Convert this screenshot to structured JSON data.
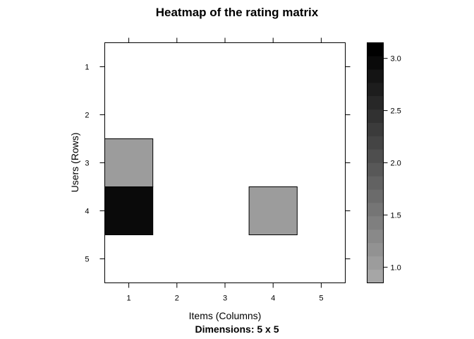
{
  "chart_data": {
    "type": "heatmap",
    "title": "Heatmap of the rating matrix",
    "subtitle": "Dimensions: 5 x 5",
    "xlabel": "Items (Columns)",
    "ylabel": "Users (Rows)",
    "x_ticks": [
      "1",
      "2",
      "3",
      "4",
      "5"
    ],
    "y_ticks": [
      "1",
      "2",
      "3",
      "4",
      "5"
    ],
    "rows": 5,
    "cols": 5,
    "cells": [
      {
        "row": 3,
        "col": 1,
        "value": 1.0
      },
      {
        "row": 4,
        "col": 1,
        "value": 3.0
      },
      {
        "row": 4,
        "col": 4,
        "value": 1.0
      }
    ],
    "colorbar": {
      "min": 0.85,
      "max": 3.15,
      "steps": 18,
      "tick_values": [
        1.0,
        1.5,
        2.0,
        2.5,
        3.0
      ],
      "tick_labels": [
        "1.0",
        "1.5",
        "2.0",
        "2.5",
        "3.0"
      ],
      "color_low": "#a6a6a6",
      "color_high": "#000000"
    },
    "grid": false,
    "legend": "right"
  }
}
